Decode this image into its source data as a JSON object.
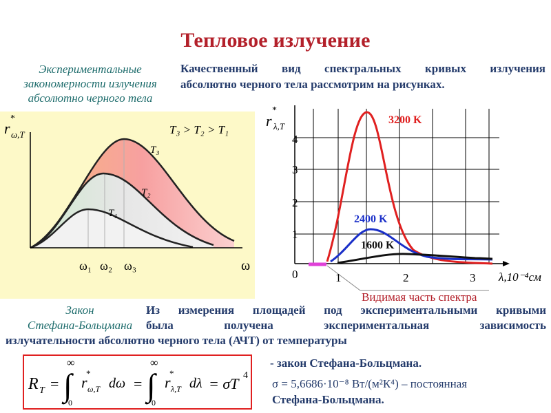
{
  "slide": {
    "title": "Тепловое излучение",
    "subtitle_left": [
      "Экспериментальные",
      "закономерности излучения",
      "абсолютно черного тела"
    ],
    "intro": [
      "Качественный вид спектральных кривых излучения",
      "абсолютно черного тела рассмотрим на рисунках."
    ]
  },
  "left_plot": {
    "ylabel_main": "r",
    "ylabel_star": "*",
    "ylabel_sub": "ω,T",
    "relation": "T₃ > T₂ > T₁",
    "curve_labels": [
      "T₃",
      "T₂",
      "T₁"
    ],
    "x_ticks": [
      "ω₁",
      "ω₂",
      "ω₃"
    ],
    "x_axis": "ω"
  },
  "right_plot": {
    "ylabel_main": "r",
    "ylabel_star": "*",
    "ylabel_sub": "λ,T",
    "y_ticks": [
      "0",
      "1",
      "2",
      "3",
      "4"
    ],
    "x_ticks": [
      "1",
      "2",
      "3"
    ],
    "x_axis": "λ,10⁻⁴см",
    "curves": [
      {
        "label": "3200 K",
        "color": "#e02020"
      },
      {
        "label": "2400 K",
        "color": "#1a2fc8"
      },
      {
        "label": "1600 K",
        "color": "#111111"
      }
    ],
    "visible_label": "Видимая часть спектра"
  },
  "law": {
    "name": [
      "Закон",
      "Стефана-Больцмана"
    ],
    "text": [
      "Из измерения площадей под экспериментальными кривыми",
      "была получена экспериментальная зависимость",
      "излучательности абсолютно черного тела (АЧТ) от температуры"
    ],
    "formula_lhs": "R",
    "formula_sub_T": "T",
    "formula_eq1": "=",
    "formula_int1_upper": "∞",
    "formula_int1_lower": "0",
    "formula_int1_body": "r",
    "formula_int1_sub": "ω,T",
    "formula_int1_d": "dω",
    "formula_int2_upper": "∞",
    "formula_int2_lower": "0",
    "formula_int2_body": "r",
    "formula_int2_sub": "λ,T",
    "formula_int2_d": "dλ",
    "formula_rhs": "= σT",
    "formula_power": "4",
    "law_label": "- закон Стефана-Больцмана.",
    "sigma_text": "σ  =  5,6686·10⁻⁸  Вт/(м²К⁴)  –  постоянная",
    "sigma_text2": "Стефана-Больцмана."
  }
}
